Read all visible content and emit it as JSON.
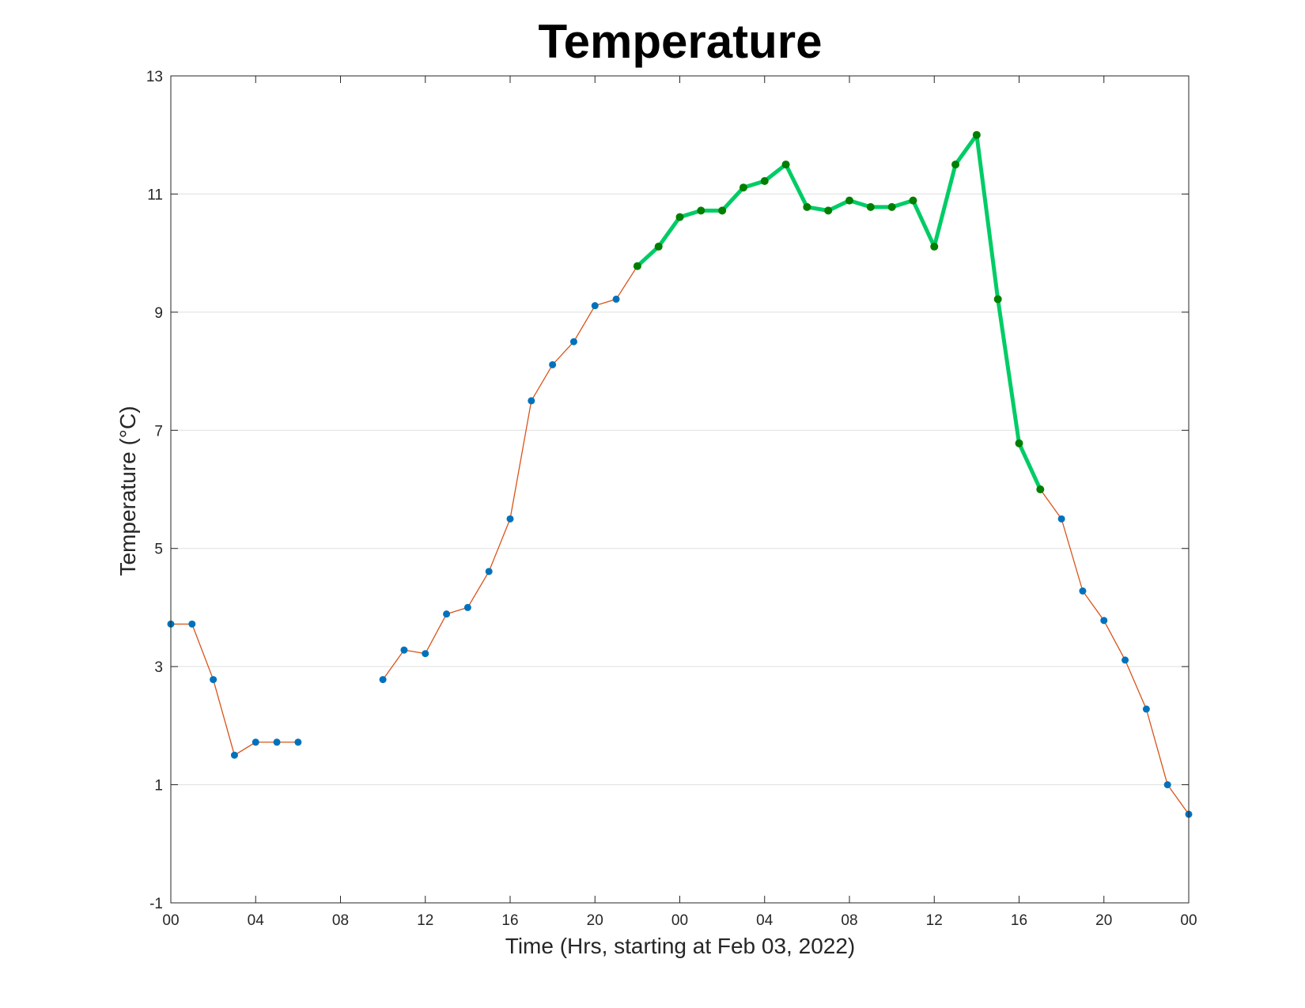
{
  "chart_data": {
    "type": "line",
    "title": "Temperature",
    "xlabel": "Time (Hrs, starting at Feb 03, 2022)",
    "ylabel": "Temperature (°C)",
    "xlim": [
      0,
      48
    ],
    "ylim": [
      -1,
      13
    ],
    "x_ticks": [
      0,
      4,
      8,
      12,
      16,
      20,
      24,
      28,
      32,
      36,
      40,
      44,
      48
    ],
    "x_tick_labels": [
      "00",
      "04",
      "08",
      "12",
      "16",
      "20",
      "00",
      "04",
      "08",
      "12",
      "16",
      "20",
      "00"
    ],
    "y_ticks": [
      -1,
      1,
      3,
      5,
      7,
      9,
      11,
      13
    ],
    "y_tick_labels": [
      "-1",
      "1",
      "3",
      "5",
      "7",
      "9",
      "11",
      "13"
    ],
    "grid": "y-major",
    "series": [
      {
        "role": "all-readings",
        "color": "#D95319",
        "marker_color": "#0072BD",
        "segments": [
          [
            [
              0,
              3.72
            ],
            [
              1,
              3.72
            ],
            [
              2,
              2.78
            ],
            [
              3,
              1.5
            ],
            [
              4,
              1.72
            ],
            [
              5,
              1.72
            ],
            [
              6,
              1.72
            ]
          ],
          [
            [
              10,
              2.78
            ],
            [
              11,
              3.28
            ],
            [
              12,
              3.22
            ],
            [
              13,
              3.89
            ],
            [
              14,
              4.0
            ],
            [
              15,
              4.61
            ],
            [
              16,
              5.5
            ],
            [
              17,
              7.5
            ],
            [
              18,
              8.11
            ],
            [
              19,
              8.5
            ],
            [
              20,
              9.11
            ],
            [
              21,
              9.22
            ],
            [
              22,
              9.78
            ],
            [
              23,
              10.11
            ],
            [
              24,
              10.61
            ],
            [
              25,
              10.72
            ],
            [
              26,
              10.72
            ],
            [
              27,
              11.11
            ],
            [
              28,
              11.22
            ],
            [
              29,
              11.5
            ],
            [
              30,
              10.78
            ],
            [
              31,
              10.72
            ],
            [
              32,
              10.89
            ],
            [
              33,
              10.78
            ],
            [
              34,
              10.78
            ],
            [
              35,
              10.89
            ],
            [
              36,
              10.11
            ],
            [
              37,
              11.5
            ],
            [
              38,
              12.0
            ],
            [
              39,
              9.22
            ],
            [
              40,
              6.78
            ],
            [
              41,
              6.0
            ],
            [
              42,
              5.5
            ],
            [
              43,
              4.28
            ],
            [
              44,
              3.78
            ],
            [
              45,
              3.11
            ],
            [
              46,
              2.28
            ],
            [
              47,
              1.0
            ],
            [
              48,
              0.5
            ]
          ]
        ]
      },
      {
        "role": "highlighted-period",
        "color": "#00CC66",
        "marker_color": "#007F00",
        "points": [
          [
            22,
            9.78
          ],
          [
            23,
            10.11
          ],
          [
            24,
            10.61
          ],
          [
            25,
            10.72
          ],
          [
            26,
            10.72
          ],
          [
            27,
            11.11
          ],
          [
            28,
            11.22
          ],
          [
            29,
            11.5
          ],
          [
            30,
            10.78
          ],
          [
            31,
            10.72
          ],
          [
            32,
            10.89
          ],
          [
            33,
            10.78
          ],
          [
            34,
            10.78
          ],
          [
            35,
            10.89
          ],
          [
            36,
            10.11
          ],
          [
            37,
            11.5
          ],
          [
            38,
            12.0
          ],
          [
            39,
            9.22
          ],
          [
            40,
            6.78
          ],
          [
            41,
            6.0
          ]
        ]
      }
    ]
  },
  "colors": {
    "axes": "#262626",
    "grid": "#dfdfdf"
  }
}
